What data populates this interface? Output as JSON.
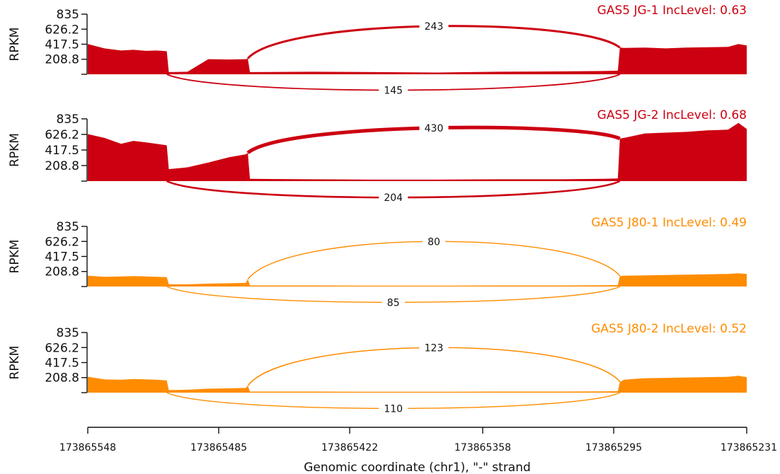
{
  "chart_data": {
    "type": "area",
    "xlabel": "Genomic coordinate (chr1), \"-\" strand",
    "x_ticks": [
      "173865548",
      "173865485",
      "173865422",
      "173865358",
      "173865295",
      "173865231"
    ],
    "xlim": [
      173865548,
      173865231
    ],
    "y_ticks": [
      "835",
      "626.2",
      "417.5",
      "208.8"
    ],
    "ylabel": "RPKM",
    "ylim": [
      0,
      835
    ],
    "exon_boundaries": [
      173865510,
      173865471,
      173865292
    ],
    "panels": [
      {
        "title": "GAS5 JG-1 IncLevel: 0.63",
        "color": "#cc0011",
        "coverage": {
          "x": [
            173865548,
            173865540,
            173865532,
            173865526,
            173865520,
            173865515,
            173865510,
            173865509,
            173865500,
            173865490,
            173865480,
            173865472,
            173865471,
            173865470,
            173865440,
            173865410,
            173865380,
            173865350,
            173865320,
            173865300,
            173865293,
            173865292,
            173865290,
            173865280,
            173865270,
            173865260,
            173865250,
            173865240,
            173865235,
            173865231
          ],
          "y": [
            420,
            360,
            330,
            340,
            325,
            330,
            320,
            30,
            35,
            210,
            205,
            210,
            220,
            30,
            35,
            30,
            25,
            35,
            40,
            45,
            50,
            370,
            365,
            370,
            360,
            370,
            375,
            380,
            420,
            400
          ]
        },
        "junctions": [
          {
            "label": "243",
            "side": "above",
            "from": 173865471,
            "to": 173865292
          },
          {
            "label": "145",
            "side": "below",
            "from": 173865510,
            "to": 173865292
          }
        ]
      },
      {
        "title": "GAS5 JG-2 IncLevel: 0.68",
        "color": "#cc0011",
        "coverage": {
          "x": [
            173865548,
            173865540,
            173865532,
            173865526,
            173865520,
            173865515,
            173865510,
            173865509,
            173865500,
            173865490,
            173865480,
            173865472,
            173865471,
            173865470,
            173865440,
            173865410,
            173865380,
            173865350,
            173865320,
            173865300,
            173865293,
            173865292,
            173865290,
            173865280,
            173865270,
            173865260,
            173865250,
            173865240,
            173865235,
            173865231
          ],
          "y": [
            630,
            580,
            500,
            540,
            520,
            500,
            480,
            160,
            185,
            250,
            320,
            360,
            380,
            30,
            25,
            20,
            20,
            25,
            25,
            30,
            35,
            570,
            580,
            640,
            650,
            660,
            680,
            690,
            780,
            700
          ]
        },
        "junctions": [
          {
            "label": "430",
            "side": "above",
            "from": 173865471,
            "to": 173865292
          },
          {
            "label": "204",
            "side": "below",
            "from": 173865510,
            "to": 173865292
          }
        ]
      },
      {
        "title": "GAS5 J80-1 IncLevel: 0.49",
        "color": "#ff8c00",
        "coverage": {
          "x": [
            173865548,
            173865540,
            173865532,
            173865526,
            173865520,
            173865515,
            173865510,
            173865509,
            173865500,
            173865490,
            173865480,
            173865472,
            173865471,
            173865470,
            173865440,
            173865410,
            173865380,
            173865350,
            173865320,
            173865300,
            173865293,
            173865292,
            173865290,
            173865280,
            173865270,
            173865260,
            173865250,
            173865240,
            173865235,
            173865231
          ],
          "y": [
            150,
            135,
            140,
            145,
            140,
            135,
            130,
            30,
            30,
            40,
            45,
            50,
            100,
            15,
            15,
            12,
            12,
            15,
            15,
            18,
            20,
            145,
            150,
            155,
            160,
            165,
            170,
            175,
            185,
            175
          ]
        },
        "junctions": [
          {
            "label": "80",
            "side": "above",
            "from": 173865471,
            "to": 173865292
          },
          {
            "label": "85",
            "side": "below",
            "from": 173865510,
            "to": 173865292
          }
        ]
      },
      {
        "title": "GAS5 J80-2 IncLevel: 0.52",
        "color": "#ff8c00",
        "coverage": {
          "x": [
            173865548,
            173865540,
            173865532,
            173865526,
            173865520,
            173865515,
            173865510,
            173865509,
            173865500,
            173865490,
            173865480,
            173865472,
            173865471,
            173865470,
            173865440,
            173865410,
            173865380,
            173865350,
            173865320,
            173865300,
            173865293,
            173865292,
            173865290,
            173865280,
            173865270,
            173865260,
            173865250,
            173865240,
            173865235,
            173865231
          ],
          "y": [
            220,
            185,
            180,
            190,
            185,
            180,
            170,
            35,
            40,
            55,
            60,
            65,
            95,
            15,
            15,
            12,
            12,
            15,
            15,
            18,
            20,
            150,
            180,
            200,
            205,
            210,
            215,
            220,
            235,
            215
          ]
        },
        "junctions": [
          {
            "label": "123",
            "side": "above",
            "from": 173865471,
            "to": 173865292
          },
          {
            "label": "110",
            "side": "below",
            "from": 173865510,
            "to": 173865292
          }
        ]
      }
    ]
  }
}
